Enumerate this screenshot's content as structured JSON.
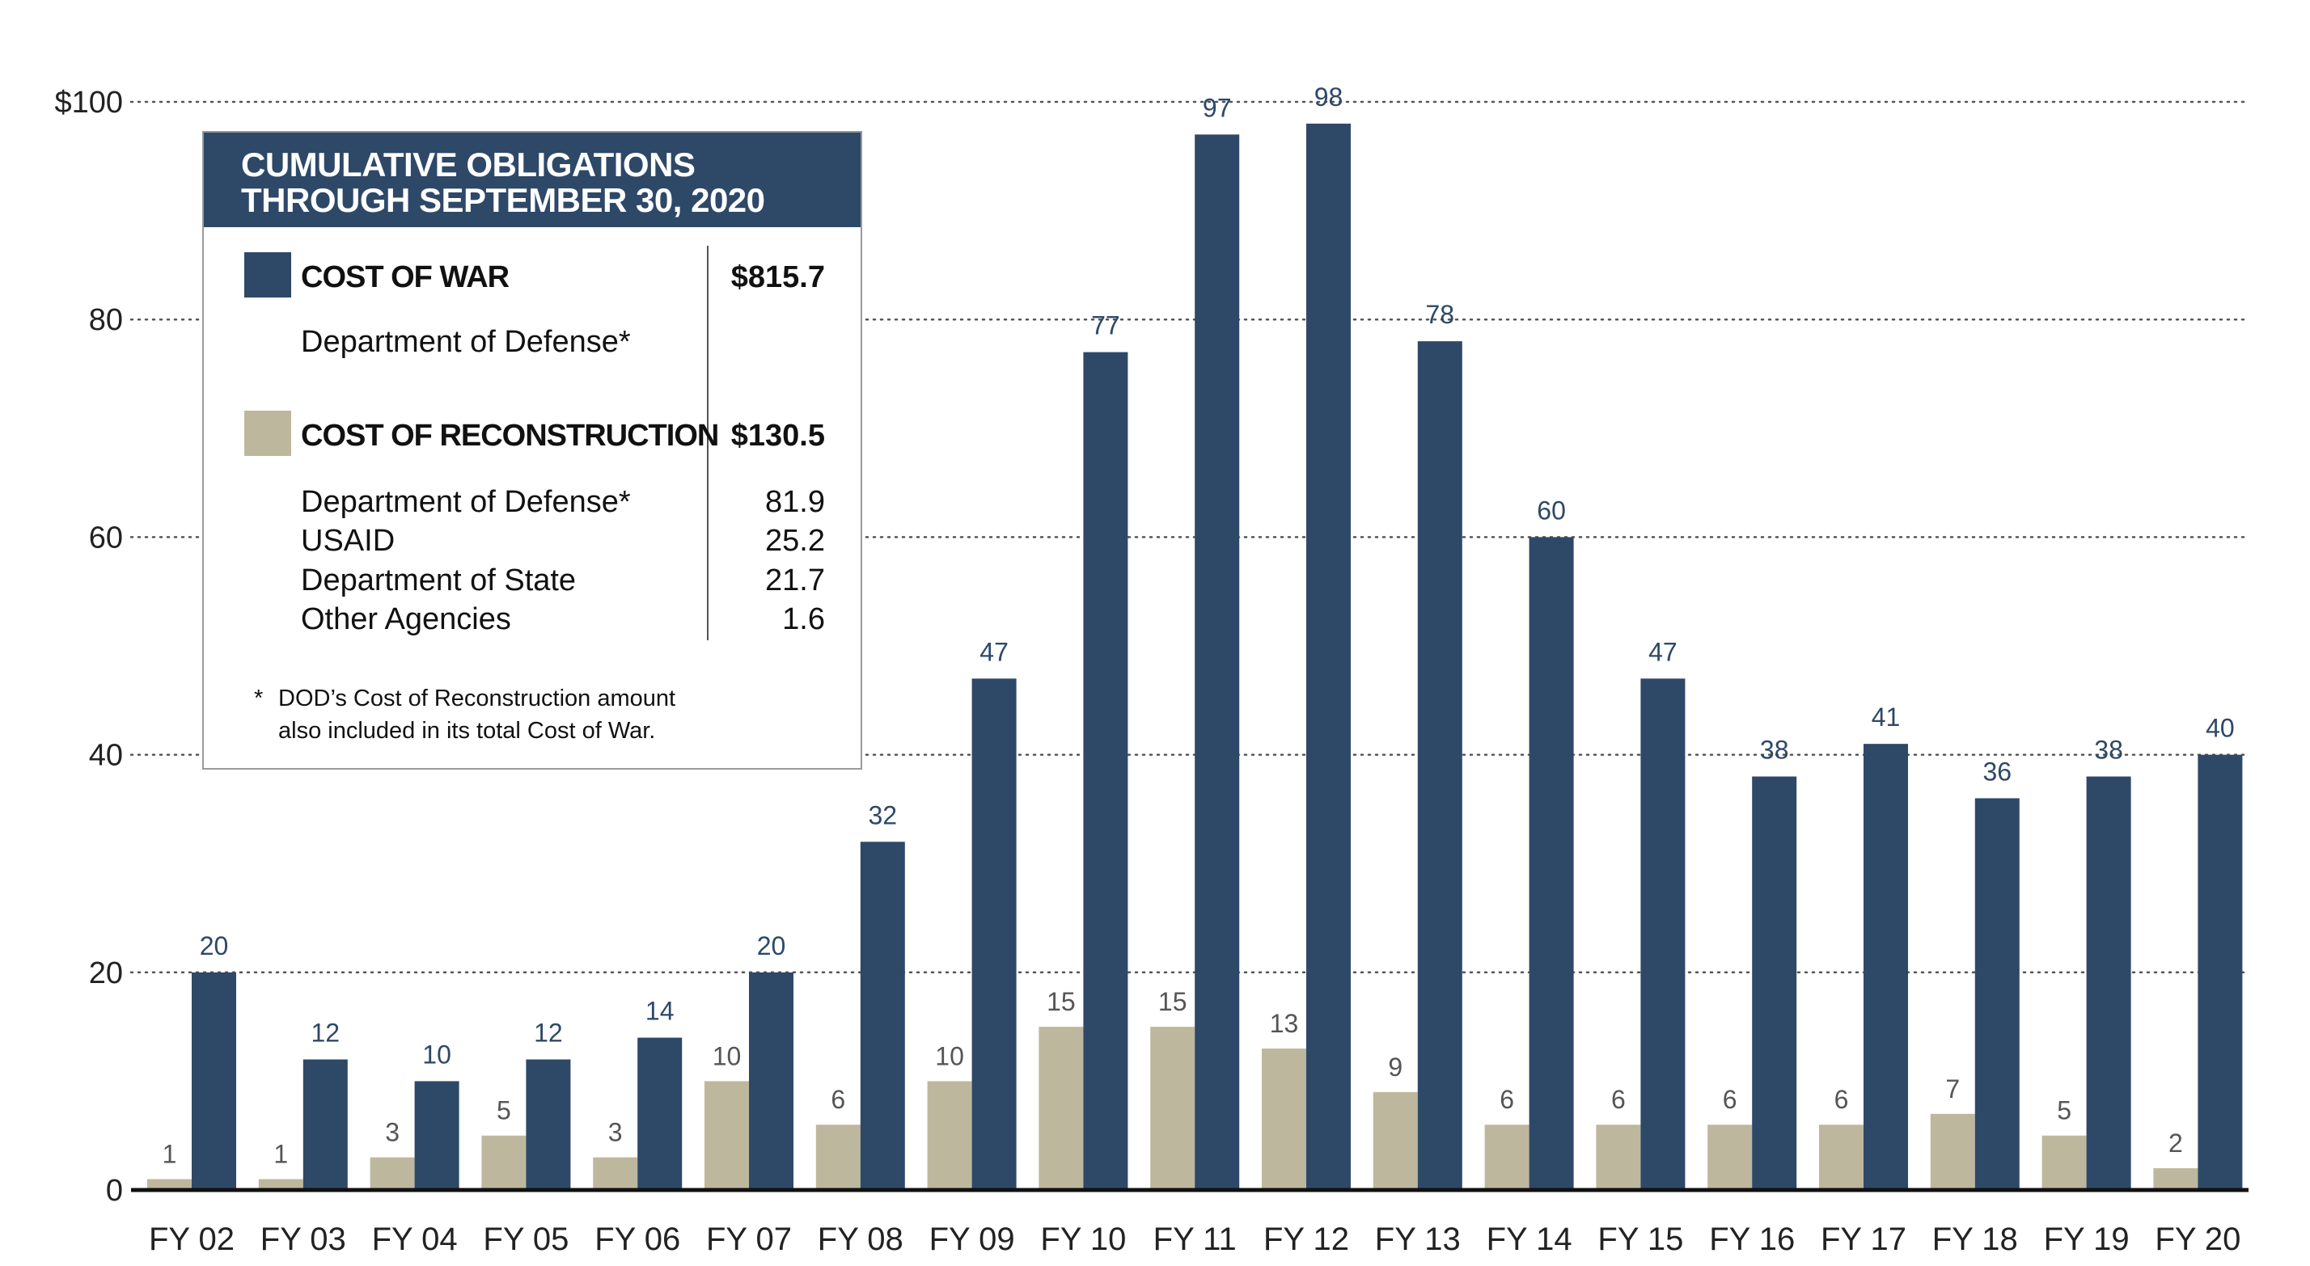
{
  "chart_data": {
    "type": "bar",
    "categories": [
      "FY 02",
      "FY 03",
      "FY 04",
      "FY 05",
      "FY 06",
      "FY 07",
      "FY 08",
      "FY 09",
      "FY 10",
      "FY 11",
      "FY 12",
      "FY 13",
      "FY 14",
      "FY 15",
      "FY 16",
      "FY 17",
      "FY 18",
      "FY 19",
      "FY 20"
    ],
    "series": [
      {
        "values": [
          1,
          1,
          3,
          5,
          3,
          10,
          6,
          10,
          15,
          15,
          13,
          9,
          6,
          6,
          6,
          6,
          7,
          5,
          2
        ],
        "color": "#bdb89d"
      },
      {
        "values": [
          20,
          12,
          10,
          12,
          14,
          20,
          32,
          47,
          77,
          97,
          98,
          78,
          60,
          47,
          38,
          41,
          36,
          38,
          40
        ],
        "color": "#2e4868"
      }
    ],
    "ylim": [
      0,
      100
    ],
    "yticks": [
      0,
      20,
      40,
      60,
      80,
      100
    ],
    "ytick_labels": [
      "0",
      "20",
      "40",
      "60",
      "80",
      "$100"
    ],
    "grid": "horizontal-dotted",
    "data_labels": true
  },
  "legend": {
    "title_line1": "CUMULATIVE OBLIGATIONS",
    "title_line2": "THROUGH SEPTEMBER 30, 2020",
    "war_label": "COST OF WAR",
    "war_total": "$815.7",
    "war_items": [
      {
        "label": "Department of Defense*"
      }
    ],
    "rec_label": "COST OF RECONSTRUCTION",
    "rec_total": "$130.5",
    "rec_items": [
      {
        "label": "Department of Defense*",
        "value": "81.9"
      },
      {
        "label": "USAID",
        "value": "25.2"
      },
      {
        "label": "Department of State",
        "value": "21.7"
      },
      {
        "label": "Other Agencies",
        "value": "1.6"
      }
    ],
    "note_star": "*",
    "note_line1": "DOD’s Cost of Reconstruction amount",
    "note_line2": "also included in its total Cost of War."
  }
}
